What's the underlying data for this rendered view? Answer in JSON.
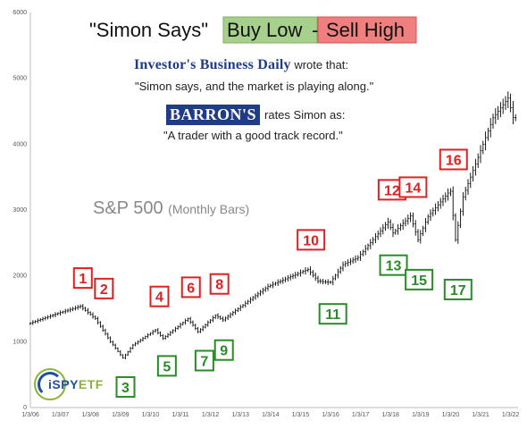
{
  "chart_data": {
    "type": "bar",
    "subtype": "monthly-ohlc",
    "title": {
      "quote_mark_text": "\"Simon Says\"",
      "buy_text": "Buy Low",
      "separator": "-",
      "sell_text": "Sell High"
    },
    "series_label": "S&P 500",
    "series_sublabel": "(Monthly Bars)",
    "press": {
      "ibd_brand": "Investor's Business Daily",
      "ibd_rest": "wrote that:",
      "ibd_quote": "\"Simon says, and the market is playing along.\"",
      "barrons_brand": "BARRON'S",
      "barrons_rest": "rates Simon as:",
      "barrons_quote": "\"A trader with a good track record.\""
    },
    "logo": {
      "main": "iSPY",
      "suffix": "ETF"
    },
    "ylim": [
      0,
      6000
    ],
    "yticks": [
      "0",
      "1000",
      "2000",
      "3000",
      "4000",
      "5000",
      "6000"
    ],
    "xlim": [
      2006.0,
      2022.25
    ],
    "xticks": [
      "1/3/06",
      "1/3/07",
      "1/3/08",
      "1/3/09",
      "1/3/10",
      "1/3/11",
      "1/3/12",
      "1/3/13",
      "1/3/14",
      "1/3/15",
      "1/3/16",
      "1/3/17",
      "1/3/18",
      "1/3/19",
      "1/3/20",
      "1/3/21",
      "1/3/22"
    ],
    "anchors": [
      [
        2006.0,
        1270
      ],
      [
        2007.0,
        1430
      ],
      [
        2007.75,
        1540
      ],
      [
        2008.25,
        1350
      ],
      [
        2008.75,
        1000
      ],
      [
        2009.17,
        750
      ],
      [
        2009.5,
        950
      ],
      [
        2010.25,
        1180
      ],
      [
        2010.5,
        1050
      ],
      [
        2011.33,
        1350
      ],
      [
        2011.67,
        1150
      ],
      [
        2012.25,
        1400
      ],
      [
        2012.5,
        1330
      ],
      [
        2013.0,
        1500
      ],
      [
        2014.0,
        1840
      ],
      [
        2015.33,
        2100
      ],
      [
        2015.67,
        1920
      ],
      [
        2016.08,
        1900
      ],
      [
        2016.5,
        2170
      ],
      [
        2017.0,
        2280
      ],
      [
        2018.0,
        2820
      ],
      [
        2018.17,
        2650
      ],
      [
        2018.75,
        2910
      ],
      [
        2019.0,
        2550
      ],
      [
        2019.33,
        2900
      ],
      [
        2020.08,
        3300
      ],
      [
        2020.25,
        2550
      ],
      [
        2020.5,
        3200
      ],
      [
        2021.0,
        3800
      ],
      [
        2021.5,
        4400
      ],
      [
        2022.0,
        4700
      ],
      [
        2022.17,
        4400
      ]
    ],
    "sell_signals": [
      {
        "label": "1",
        "x": 2007.75,
        "y": 1560
      },
      {
        "label": "2",
        "x": 2008.45,
        "y": 1400
      },
      {
        "label": "4",
        "x": 2010.3,
        "y": 1280
      },
      {
        "label": "6",
        "x": 2011.35,
        "y": 1420
      },
      {
        "label": "8",
        "x": 2012.3,
        "y": 1470
      },
      {
        "label": "10",
        "x": 2015.35,
        "y": 2140
      },
      {
        "label": "12",
        "x": 2018.05,
        "y": 2900
      },
      {
        "label": "14",
        "x": 2018.75,
        "y": 2940
      },
      {
        "label": "16",
        "x": 2020.1,
        "y": 3360
      }
    ],
    "buy_signals": [
      {
        "label": "3",
        "x": 2009.17,
        "y": 720
      },
      {
        "label": "5",
        "x": 2010.55,
        "y": 1040
      },
      {
        "label": "7",
        "x": 2011.8,
        "y": 1120
      },
      {
        "label": "9",
        "x": 2012.45,
        "y": 1280
      },
      {
        "label": "11",
        "x": 2016.08,
        "y": 1830
      },
      {
        "label": "13",
        "x": 2018.1,
        "y": 2570
      },
      {
        "label": "15",
        "x": 2018.95,
        "y": 2350
      },
      {
        "label": "17",
        "x": 2020.25,
        "y": 2200
      }
    ],
    "colors": {
      "bars": "#000000",
      "sell_border": "#e02020",
      "sell_text": "#e02020",
      "buy_border": "#2a8a2a",
      "buy_text": "#2a8a2a",
      "buy_fill": "#a8d08d",
      "sell_fill": "#f08080"
    },
    "grid": false
  }
}
